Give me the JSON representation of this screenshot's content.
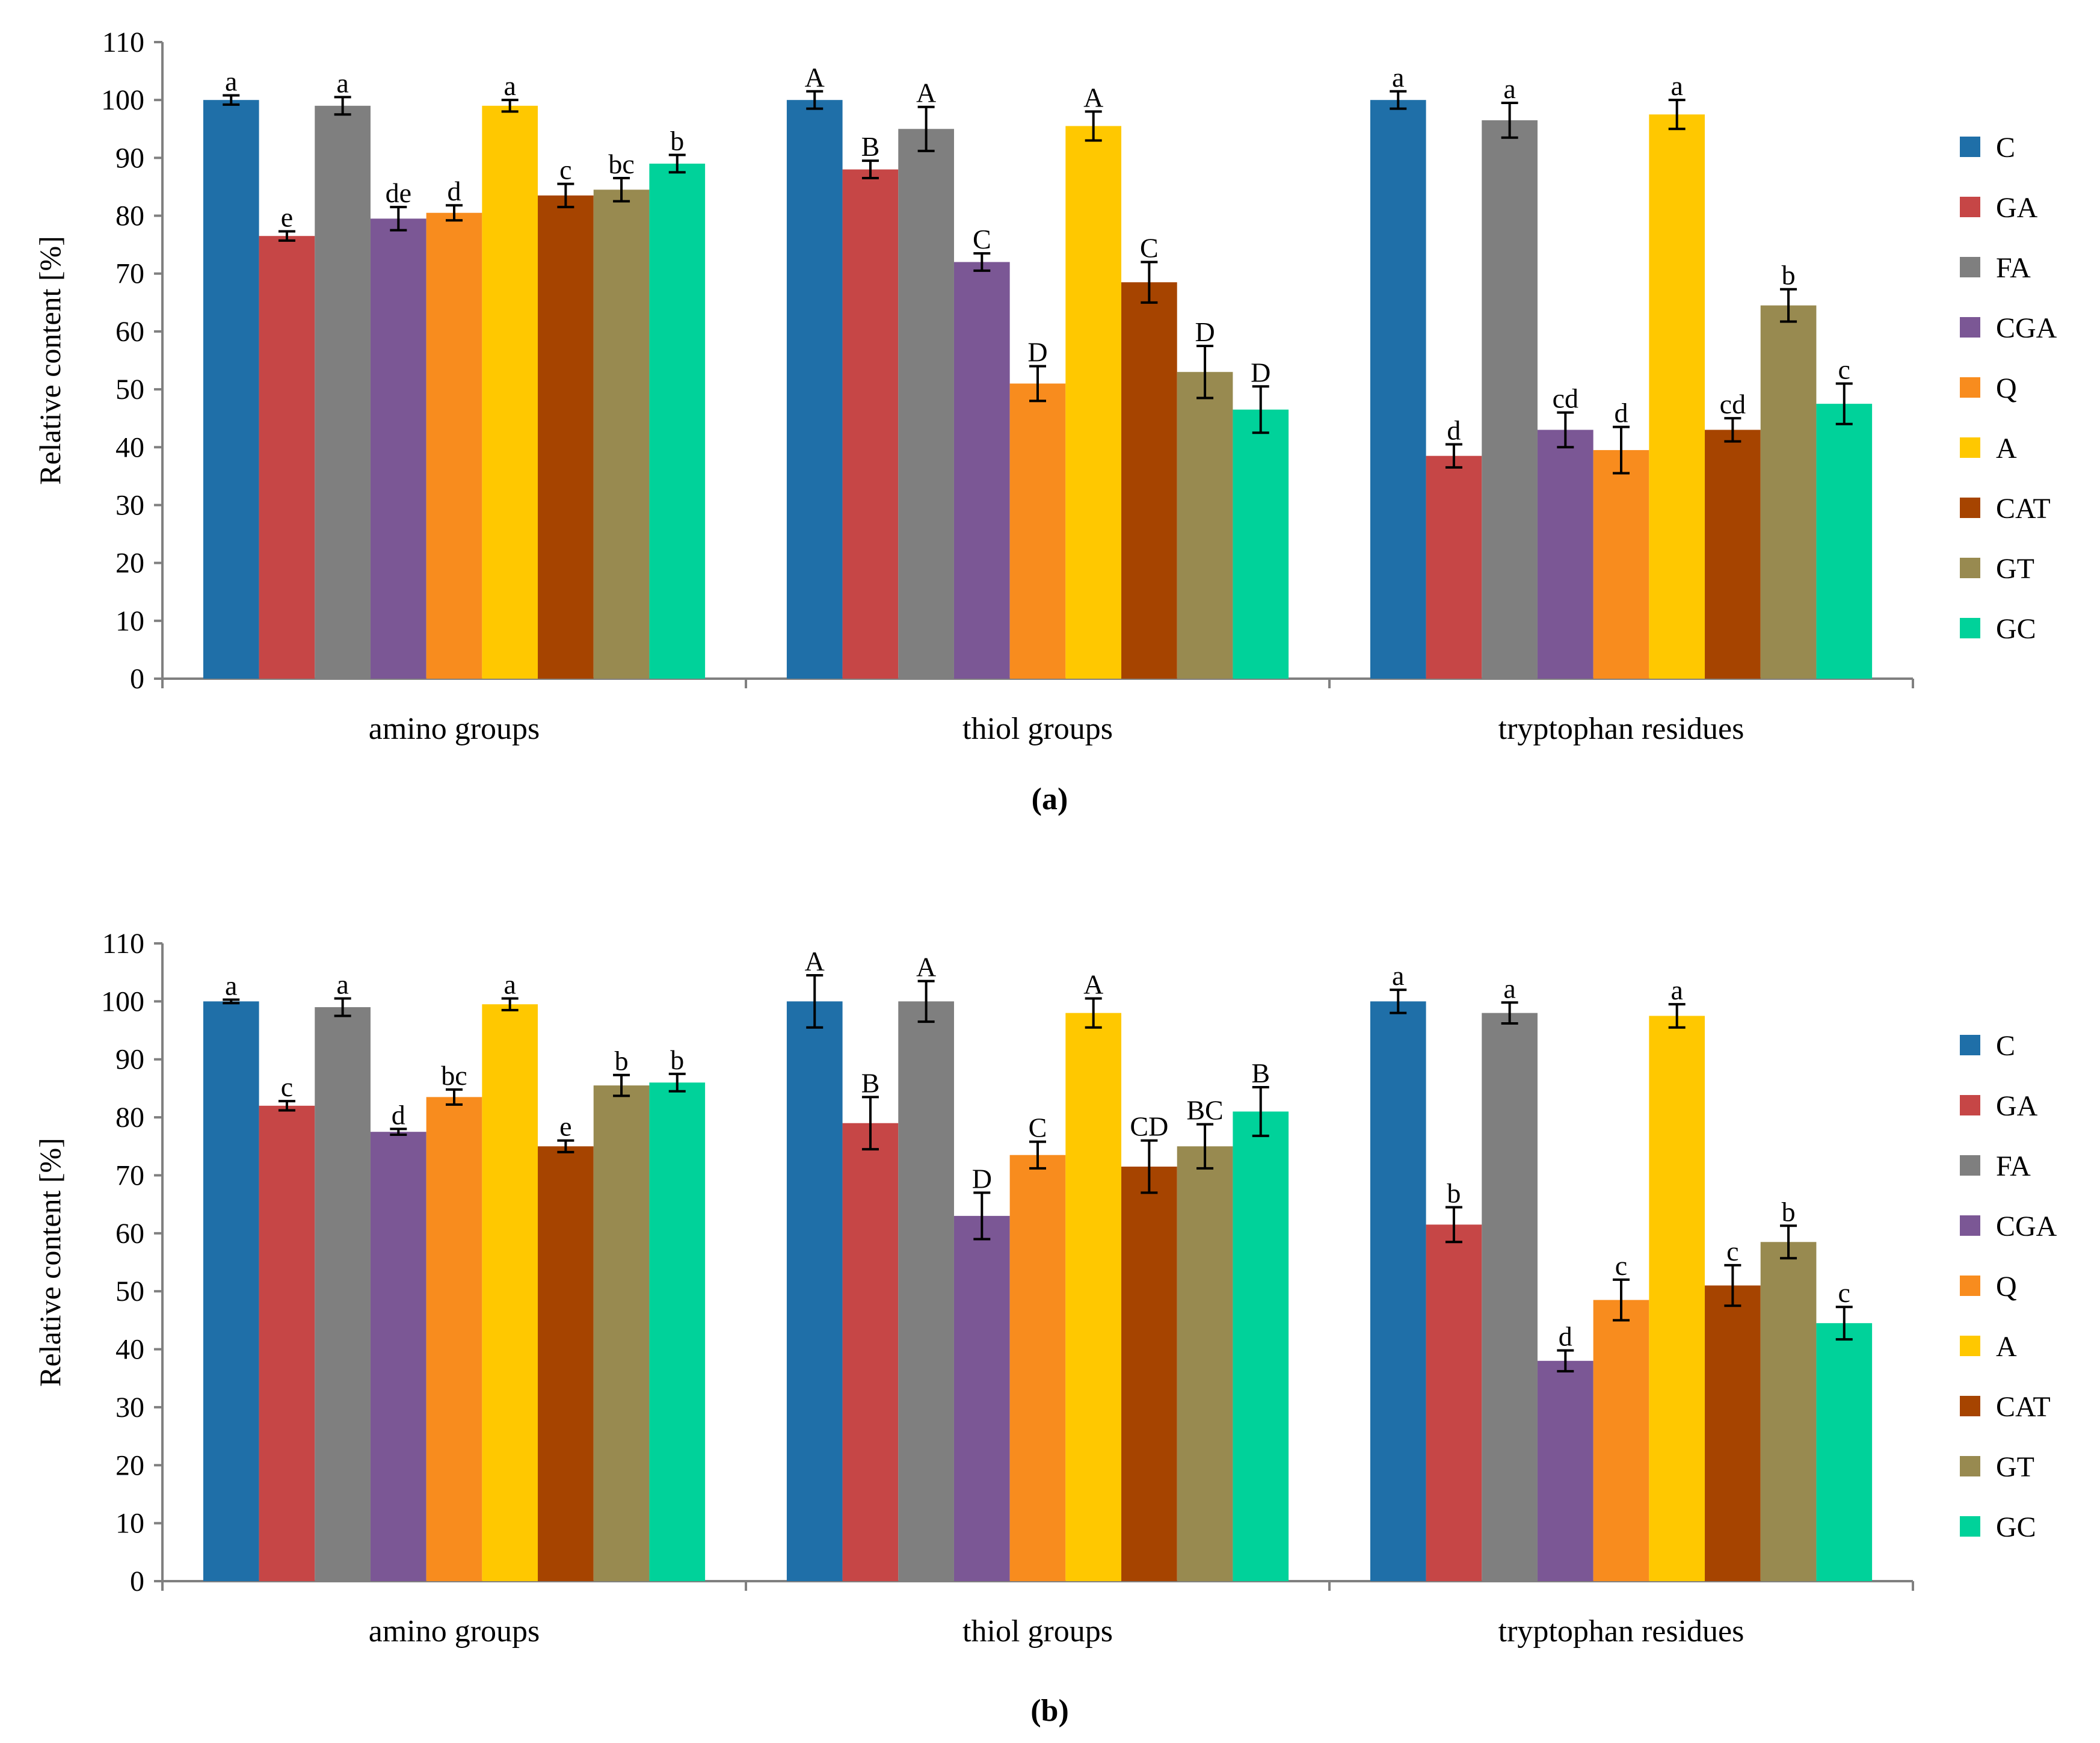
{
  "colors": {
    "C": "#1f6fa8",
    "GA": "#c64646",
    "FA": "#7f7f7f",
    "CGA": "#7b5795",
    "Q": "#f88c1e",
    "A": "#ffc800",
    "CAT": "#a64400",
    "GT": "#988a50",
    "GC": "#00d29a",
    "axis": "#808080",
    "error": "#000000"
  },
  "chart_data": [
    {
      "type": "bar",
      "panel_label": "(a)",
      "ylabel": "Relative content [%]",
      "xlabel": "",
      "ylim": [
        0,
        110
      ],
      "yticks": [
        "0",
        "10",
        "20",
        "30",
        "40",
        "50",
        "60",
        "70",
        "80",
        "90",
        "100",
        "110"
      ],
      "legend_position": "right",
      "categories": [
        "amino groups",
        "thiol groups",
        "tryptophan residues"
      ],
      "series": [
        {
          "name": "C",
          "values": [
            100,
            100,
            100
          ],
          "errors": [
            0.8,
            1.5,
            1.5
          ],
          "labels": [
            "a",
            "A",
            "a"
          ]
        },
        {
          "name": "GA",
          "values": [
            76.5,
            88,
            38.5
          ],
          "errors": [
            0.8,
            1.5,
            2.0
          ],
          "labels": [
            "e",
            "B",
            "d"
          ]
        },
        {
          "name": "FA",
          "values": [
            99,
            95,
            96.5
          ],
          "errors": [
            1.5,
            3.8,
            3.0
          ],
          "labels": [
            "a",
            "A",
            "a"
          ]
        },
        {
          "name": "CGA",
          "values": [
            79.5,
            72,
            43
          ],
          "errors": [
            2.0,
            1.5,
            3.0
          ],
          "labels": [
            "de",
            "C",
            "cd"
          ]
        },
        {
          "name": "Q",
          "values": [
            80.5,
            51,
            39.5
          ],
          "errors": [
            1.3,
            3.0,
            4.0
          ],
          "labels": [
            "d",
            "D",
            "d"
          ]
        },
        {
          "name": "A",
          "values": [
            99,
            95.5,
            97.5
          ],
          "errors": [
            1.0,
            2.5,
            2.5
          ],
          "labels": [
            "a",
            "A",
            "a"
          ]
        },
        {
          "name": "CAT",
          "values": [
            83.5,
            68.5,
            43
          ],
          "errors": [
            2.0,
            3.5,
            2.0
          ],
          "labels": [
            "c",
            "C",
            "cd"
          ]
        },
        {
          "name": "GT",
          "values": [
            84.5,
            53,
            64.5
          ],
          "errors": [
            2.0,
            4.5,
            2.8
          ],
          "labels": [
            "bc",
            "D",
            "b"
          ]
        },
        {
          "name": "GC",
          "values": [
            89,
            46.5,
            47.5
          ],
          "errors": [
            1.5,
            4.0,
            3.5
          ],
          "labels": [
            "b",
            "D",
            "c"
          ]
        }
      ]
    },
    {
      "type": "bar",
      "panel_label": "(b)",
      "ylabel": "Relative content [%]",
      "xlabel": "",
      "ylim": [
        0,
        110
      ],
      "yticks": [
        "0",
        "10",
        "20",
        "30",
        "40",
        "50",
        "60",
        "70",
        "80",
        "90",
        "100",
        "110"
      ],
      "legend_position": "right",
      "categories": [
        "amino groups",
        "thiol groups",
        "tryptophan residues"
      ],
      "series": [
        {
          "name": "C",
          "values": [
            100,
            100,
            100
          ],
          "errors": [
            0.3,
            4.5,
            2.0
          ],
          "labels": [
            "a",
            "A",
            "a"
          ]
        },
        {
          "name": "GA",
          "values": [
            82,
            79,
            61.5
          ],
          "errors": [
            0.8,
            4.5,
            3.0
          ],
          "labels": [
            "c",
            "B",
            "b"
          ]
        },
        {
          "name": "FA",
          "values": [
            99,
            100,
            98
          ],
          "errors": [
            1.5,
            3.5,
            1.8
          ],
          "labels": [
            "a",
            "A",
            "a"
          ]
        },
        {
          "name": "CGA",
          "values": [
            77.5,
            63,
            38
          ],
          "errors": [
            0.5,
            4.0,
            1.8
          ],
          "labels": [
            "d",
            "D",
            "d"
          ]
        },
        {
          "name": "Q",
          "values": [
            83.5,
            73.5,
            48.5
          ],
          "errors": [
            1.3,
            2.3,
            3.5
          ],
          "labels": [
            "bc",
            "C",
            "c"
          ]
        },
        {
          "name": "A",
          "values": [
            99.5,
            98,
            97.5
          ],
          "errors": [
            1.0,
            2.5,
            2.0
          ],
          "labels": [
            "a",
            "A",
            "a"
          ]
        },
        {
          "name": "CAT",
          "values": [
            75,
            71.5,
            51
          ],
          "errors": [
            1.0,
            4.5,
            3.5
          ],
          "labels": [
            "e",
            "CD",
            "c"
          ]
        },
        {
          "name": "GT",
          "values": [
            85.5,
            75,
            58.5
          ],
          "errors": [
            1.8,
            3.8,
            2.8
          ],
          "labels": [
            "b",
            "BC",
            "b"
          ]
        },
        {
          "name": "GC",
          "values": [
            86,
            81,
            44.5
          ],
          "errors": [
            1.5,
            4.2,
            2.8
          ],
          "labels": [
            "b",
            "B",
            "c"
          ]
        }
      ]
    }
  ]
}
